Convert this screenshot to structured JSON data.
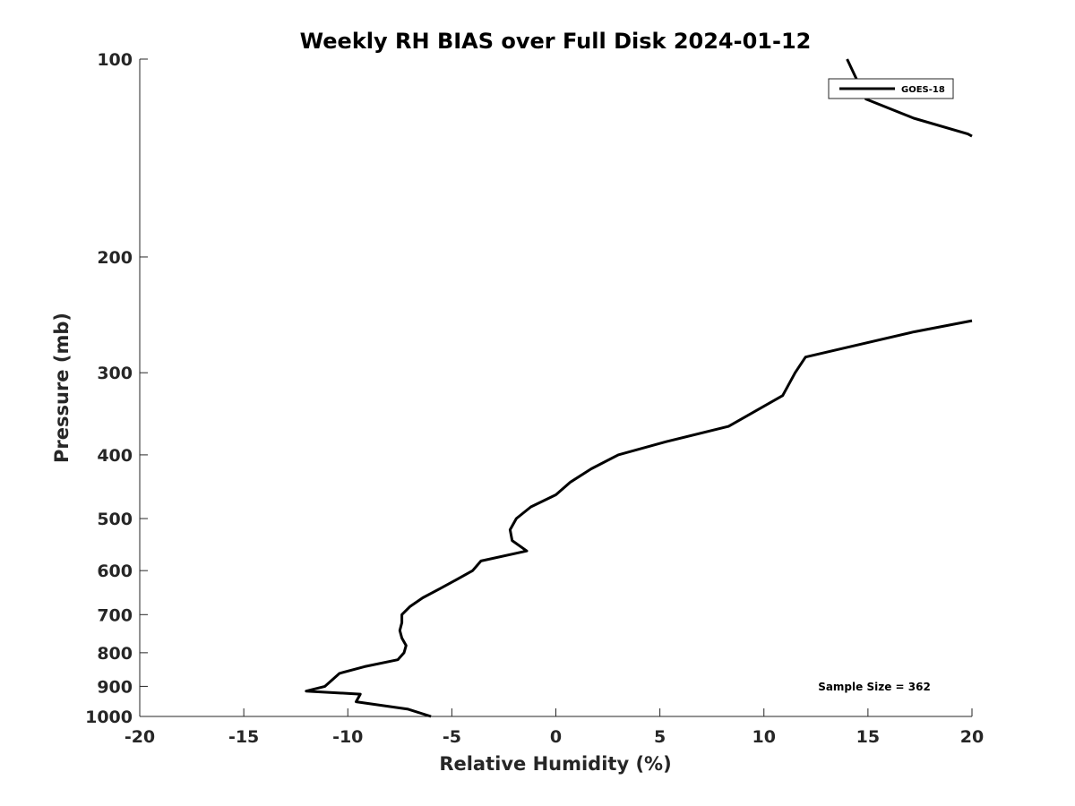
{
  "chart_data": {
    "type": "line",
    "title": "Weekly RH BIAS over Full Disk 2024-01-12",
    "xlabel": "Relative Humidity (%)",
    "ylabel": "Pressure (mb)",
    "xlim": [
      -20,
      20
    ],
    "ylim": [
      100,
      1000
    ],
    "y_scale": "log",
    "y_reversed": true,
    "x_ticks": [
      -20,
      -15,
      -10,
      -5,
      0,
      5,
      10,
      15,
      20
    ],
    "x_tick_labels": [
      "-20",
      "-15",
      "-10",
      "-5",
      "0",
      "5",
      "10",
      "15",
      "20"
    ],
    "y_ticks": [
      100,
      200,
      300,
      400,
      500,
      600,
      700,
      800,
      900,
      1000
    ],
    "y_tick_labels": [
      "100",
      "200",
      "300",
      "400",
      "500",
      "600",
      "700",
      "800",
      "900",
      "1000"
    ],
    "grid": false,
    "legend": {
      "position": "top-right",
      "entries": [
        "GOES-18"
      ]
    },
    "annotation": "Sample Size = 362",
    "series": [
      {
        "name": "GOES-18",
        "color": "#000000",
        "segments": [
          [
            {
              "x": 14.0,
              "y": 100
            },
            {
              "x": 14.9,
              "y": 115
            },
            {
              "x": 17.2,
              "y": 123
            },
            {
              "x": 19.8,
              "y": 130
            },
            {
              "x": 20.0,
              "y": 131
            }
          ],
          [
            {
              "x": 20.0,
              "y": 250
            },
            {
              "x": 17.2,
              "y": 260
            },
            {
              "x": 12.0,
              "y": 284
            },
            {
              "x": 11.5,
              "y": 300
            },
            {
              "x": 10.9,
              "y": 325
            },
            {
              "x": 8.3,
              "y": 362
            },
            {
              "x": 5.3,
              "y": 382
            },
            {
              "x": 3.0,
              "y": 400
            },
            {
              "x": 1.7,
              "y": 420
            },
            {
              "x": 0.7,
              "y": 440
            },
            {
              "x": 0.0,
              "y": 460
            },
            {
              "x": -1.2,
              "y": 480
            },
            {
              "x": -1.9,
              "y": 500
            },
            {
              "x": -2.2,
              "y": 520
            },
            {
              "x": -2.1,
              "y": 540
            },
            {
              "x": -1.4,
              "y": 560
            },
            {
              "x": -3.6,
              "y": 580
            },
            {
              "x": -4.0,
              "y": 600
            },
            {
              "x": -4.8,
              "y": 620
            },
            {
              "x": -5.6,
              "y": 640
            },
            {
              "x": -6.4,
              "y": 660
            },
            {
              "x": -7.0,
              "y": 680
            },
            {
              "x": -7.4,
              "y": 700
            },
            {
              "x": -7.4,
              "y": 720
            },
            {
              "x": -7.5,
              "y": 740
            },
            {
              "x": -7.4,
              "y": 760
            },
            {
              "x": -7.2,
              "y": 780
            },
            {
              "x": -7.3,
              "y": 800
            },
            {
              "x": -7.6,
              "y": 820
            },
            {
              "x": -9.2,
              "y": 840
            },
            {
              "x": -10.4,
              "y": 860
            },
            {
              "x": -11.1,
              "y": 900
            },
            {
              "x": -12.0,
              "y": 915
            },
            {
              "x": -9.4,
              "y": 925
            },
            {
              "x": -9.6,
              "y": 950
            },
            {
              "x": -7.1,
              "y": 975
            },
            {
              "x": -6.0,
              "y": 1000
            }
          ]
        ]
      }
    ]
  }
}
